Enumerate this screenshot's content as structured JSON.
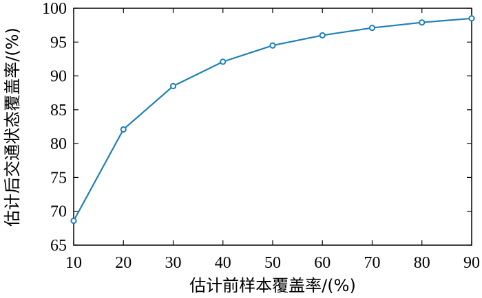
{
  "chart_data": {
    "type": "line",
    "title": "",
    "xlabel": "估计前样本覆盖率/(%)",
    "ylabel": "估计后交通状态覆盖率/(%)",
    "xlim": [
      10,
      90
    ],
    "ylim": [
      65,
      100
    ],
    "x_ticks": [
      "10",
      "20",
      "30",
      "40",
      "50",
      "60",
      "70",
      "80",
      "90"
    ],
    "y_ticks": [
      "65",
      "70",
      "75",
      "80",
      "85",
      "90",
      "95",
      "100"
    ],
    "grid": false,
    "legend": "none",
    "series": [
      {
        "x": [
          10,
          20,
          30,
          40,
          50,
          60,
          70,
          80,
          90
        ],
        "values": [
          68.6,
          82.1,
          88.5,
          92.1,
          94.5,
          96.0,
          97.1,
          97.9,
          98.5
        ],
        "color": "#1f7fb8",
        "marker": "circle"
      }
    ]
  }
}
